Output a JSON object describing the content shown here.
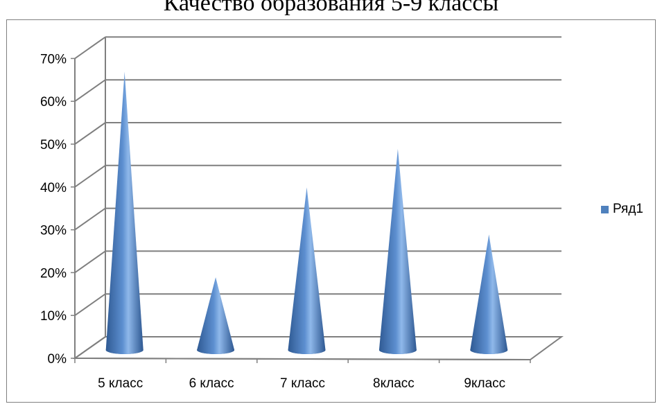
{
  "chart_data": {
    "type": "bar",
    "title": "Качество образования 5-9 классы",
    "categories": [
      "5 класс",
      "6 класс",
      "7 класс",
      "8класс",
      "9класс"
    ],
    "series": [
      {
        "name": "Ряд1",
        "values": [
          0.64,
          0.16,
          0.37,
          0.46,
          0.26
        ]
      }
    ],
    "yticks": [
      "0%",
      "10%",
      "20%",
      "30%",
      "40%",
      "50%",
      "60%",
      "70%"
    ],
    "ylim": [
      0,
      0.7
    ],
    "grid": true,
    "legend": "right",
    "bar_shape": "cone-3d",
    "colors": {
      "series": "#4f81bd",
      "grid": "#7f7f7f"
    }
  }
}
